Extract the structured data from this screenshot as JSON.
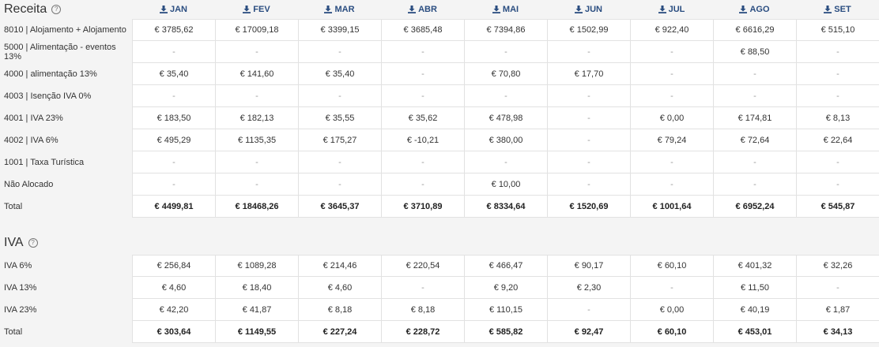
{
  "receita": {
    "title": "Receita",
    "help": "?",
    "months": [
      "JAN",
      "FEV",
      "MAR",
      "ABR",
      "MAI",
      "JUN",
      "JUL",
      "AGO",
      "SET"
    ],
    "rows": [
      {
        "label": "8010 | Alojamento + Alojamento",
        "values": [
          "€ 3785,62",
          "€ 17009,18",
          "€ 3399,15",
          "€ 3685,48",
          "€ 7394,86",
          "€ 1502,99",
          "€ 922,40",
          "€ 6616,29",
          "€ 515,10"
        ]
      },
      {
        "label": "5000 | Alimentação - eventos 13%",
        "values": [
          "-",
          "-",
          "-",
          "-",
          "-",
          "-",
          "-",
          "€ 88,50",
          "-"
        ]
      },
      {
        "label": "4000 | alimentação 13%",
        "values": [
          "€ 35,40",
          "€ 141,60",
          "€ 35,40",
          "-",
          "€ 70,80",
          "€ 17,70",
          "-",
          "-",
          "-"
        ]
      },
      {
        "label": "4003 | Isenção IVA 0%",
        "values": [
          "-",
          "-",
          "-",
          "-",
          "-",
          "-",
          "-",
          "-",
          "-"
        ]
      },
      {
        "label": "4001 | IVA 23%",
        "values": [
          "€ 183,50",
          "€ 182,13",
          "€ 35,55",
          "€ 35,62",
          "€ 478,98",
          "-",
          "€ 0,00",
          "€ 174,81",
          "€ 8,13"
        ]
      },
      {
        "label": "4002 | IVA 6%",
        "values": [
          "€ 495,29",
          "€ 1135,35",
          "€ 175,27",
          "€ -10,21",
          "€ 380,00",
          "-",
          "€ 79,24",
          "€ 72,64",
          "€ 22,64"
        ]
      },
      {
        "label": "1001 | Taxa Turística",
        "values": [
          "-",
          "-",
          "-",
          "-",
          "-",
          "-",
          "-",
          "-",
          "-"
        ]
      },
      {
        "label": "Não Alocado",
        "values": [
          "-",
          "-",
          "-",
          "-",
          "€ 10,00",
          "-",
          "-",
          "-",
          "-"
        ]
      }
    ],
    "total": {
      "label": "Total",
      "values": [
        "€ 4499,81",
        "€ 18468,26",
        "€ 3645,37",
        "€ 3710,89",
        "€ 8334,64",
        "€ 1520,69",
        "€ 1001,64",
        "€ 6952,24",
        "€ 545,87"
      ]
    }
  },
  "iva": {
    "title": "IVA",
    "help": "?",
    "rows": [
      {
        "label": "IVA 6%",
        "values": [
          "€ 256,84",
          "€ 1089,28",
          "€ 214,46",
          "€ 220,54",
          "€ 466,47",
          "€ 90,17",
          "€ 60,10",
          "€ 401,32",
          "€ 32,26"
        ]
      },
      {
        "label": "IVA 13%",
        "values": [
          "€ 4,60",
          "€ 18,40",
          "€ 4,60",
          "-",
          "€ 9,20",
          "€ 2,30",
          "-",
          "€ 11,50",
          "-"
        ]
      },
      {
        "label": "IVA 23%",
        "values": [
          "€ 42,20",
          "€ 41,87",
          "€ 8,18",
          "€ 8,18",
          "€ 110,15",
          "-",
          "€ 0,00",
          "€ 40,19",
          "€ 1,87"
        ]
      }
    ],
    "total": {
      "label": "Total",
      "values": [
        "€ 303,64",
        "€ 1149,55",
        "€ 227,24",
        "€ 228,72",
        "€ 585,82",
        "€ 92,47",
        "€ 60,10",
        "€ 453,01",
        "€ 34,13"
      ]
    }
  },
  "icons": {
    "download": "download-icon",
    "help": "help-circle-icon"
  },
  "colors": {
    "header_text": "#2a4d80",
    "background": "#f4f4f4",
    "cell_bg": "#ffffff"
  }
}
